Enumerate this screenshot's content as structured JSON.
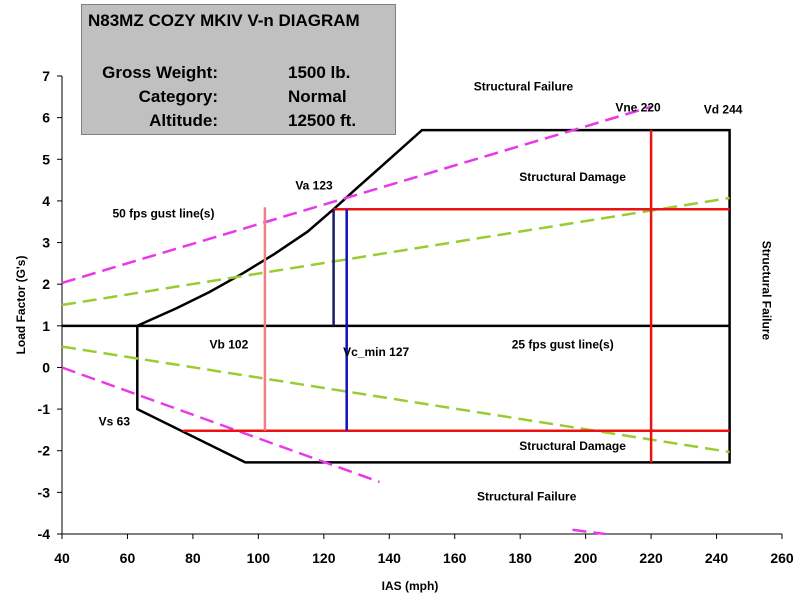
{
  "chart_data": {
    "type": "line",
    "title": "N83MZ COZY MKIV V-n DIAGRAM",
    "info": [
      {
        "label": "Gross Weight:",
        "value": "1500 lb."
      },
      {
        "label": "Category:",
        "value": "Normal"
      },
      {
        "label": "Altitude:",
        "value": "12500 ft."
      }
    ],
    "xlabel": "IAS (mph)",
    "ylabel": "Load Factor (G's)",
    "xlim": [
      40,
      260
    ],
    "ylim": [
      -4,
      7
    ],
    "xticks": [
      40,
      60,
      80,
      100,
      120,
      140,
      160,
      180,
      200,
      220,
      240,
      260
    ],
    "yticks": [
      7,
      6,
      5,
      4,
      3,
      2,
      1,
      0,
      -1,
      -2,
      -3,
      -4
    ],
    "grid": false,
    "colors": {
      "envelope": "#000000",
      "gust50": "#e838e8",
      "gust25": "#99cc33",
      "structural": "#ee1111",
      "va": "#1a1a6e",
      "vc": "#1111bb",
      "vb": "#f08080"
    },
    "series": [
      {
        "id": "envelope",
        "style": "solid",
        "x": [
          63,
          65,
          75,
          85,
          95,
          105,
          115,
          123,
          130,
          140,
          150,
          244,
          244,
          96,
          63,
          63,
          63
        ],
        "y": [
          1.0,
          1.07,
          1.42,
          1.81,
          2.25,
          2.73,
          3.26,
          3.8,
          4.3,
          5.0,
          5.7,
          5.7,
          -2.28,
          -2.28,
          -1.0,
          -1.0,
          1.0
        ]
      },
      {
        "id": "gust50-positive",
        "style": "dashed",
        "x": [
          40,
          220
        ],
        "y": [
          2.03,
          6.26
        ]
      },
      {
        "id": "gust50-negative",
        "style": "dashed",
        "x": [
          40,
          137
        ],
        "y": [
          0.0,
          -2.75
        ]
      },
      {
        "id": "gust50-negative-end",
        "style": "dashed",
        "x": [
          196,
          206
        ],
        "y": [
          -3.9,
          -4.0
        ]
      },
      {
        "id": "gust25-positive",
        "style": "dashed",
        "x": [
          40,
          244
        ],
        "y": [
          1.5,
          4.07
        ]
      },
      {
        "id": "gust25-negative",
        "style": "dashed",
        "x": [
          40,
          244
        ],
        "y": [
          0.5,
          -2.03
        ]
      },
      {
        "id": "structural-upper",
        "style": "solid",
        "x": [
          123,
          244
        ],
        "y": [
          3.8,
          3.8
        ]
      },
      {
        "id": "structural-lower",
        "style": "solid",
        "x": [
          77,
          244
        ],
        "y": [
          -1.52,
          -1.52
        ]
      },
      {
        "id": "vne",
        "style": "solid",
        "x": [
          220,
          220
        ],
        "y": [
          5.7,
          -2.28
        ]
      },
      {
        "id": "va",
        "style": "solid",
        "x": [
          123,
          123
        ],
        "y": [
          3.8,
          1.0
        ]
      },
      {
        "id": "vc-min",
        "style": "solid",
        "x": [
          127,
          127
        ],
        "y": [
          3.8,
          -1.52
        ]
      },
      {
        "id": "vb",
        "style": "solid",
        "x": [
          102,
          102
        ],
        "y": [
          3.85,
          -1.52
        ]
      }
    ],
    "annotations": [
      {
        "text": "Structural Failure",
        "x": 181,
        "y": 6.65
      },
      {
        "text": "Vne 220",
        "x": 216,
        "y": 6.15
      },
      {
        "text": "Vd 244",
        "x": 242,
        "y": 6.1
      },
      {
        "text": "Structural Damage",
        "x": 196,
        "y": 4.48
      },
      {
        "text": "Va 123",
        "x": 117,
        "y": 4.27
      },
      {
        "text": "50 fps gust line(s)",
        "x": 71,
        "y": 3.6
      },
      {
        "text": "Structural Failure",
        "x": 254,
        "y": 1.85,
        "rotate": 90
      },
      {
        "text": "Vb 102",
        "x": 91,
        "y": 0.45
      },
      {
        "text": "Vc_min 127",
        "x": 136,
        "y": 0.27
      },
      {
        "text": "25 fps gust line(s)",
        "x": 193,
        "y": 0.45
      },
      {
        "text": "Vs 63",
        "x": 56,
        "y": -1.4
      },
      {
        "text": "Structural Damage",
        "x": 196,
        "y": -1.98
      },
      {
        "text": "Structural Failure",
        "x": 182,
        "y": -3.2
      }
    ]
  }
}
